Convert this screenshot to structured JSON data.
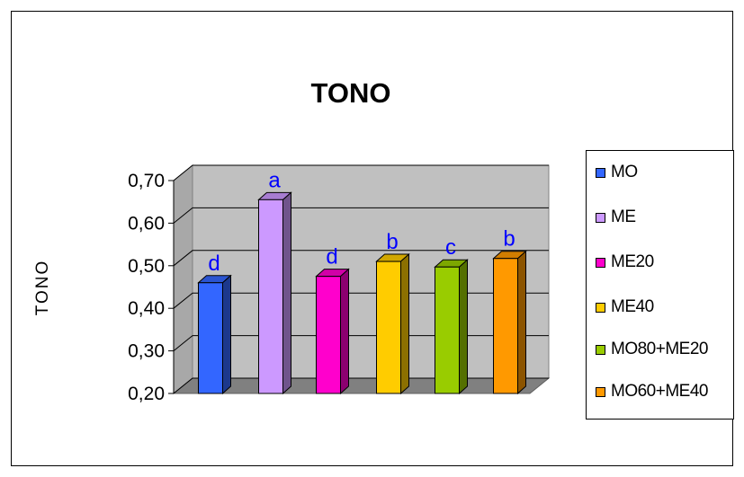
{
  "chart_data": {
    "type": "bar",
    "title": "TONO",
    "ylabel": "TONO",
    "xlabel": "",
    "ylim": [
      0.2,
      0.7
    ],
    "yticks": [
      "0,20",
      "0,30",
      "0,40",
      "0,50",
      "0,60",
      "0,70"
    ],
    "ytick_values": [
      0.2,
      0.3,
      0.4,
      0.5,
      0.6,
      0.7
    ],
    "grid": true,
    "legend_position": "right",
    "series": [
      {
        "name": "MO",
        "value": 0.46,
        "label": "d",
        "color": "#3366ff"
      },
      {
        "name": "ME",
        "value": 0.655,
        "label": "a",
        "color": "#cc99ff"
      },
      {
        "name": "ME20",
        "value": 0.475,
        "label": "d",
        "color": "#ff00cc"
      },
      {
        "name": "ME40",
        "value": 0.51,
        "label": "b",
        "color": "#ffcc00"
      },
      {
        "name": "MO80+ME20",
        "value": 0.497,
        "label": "c",
        "color": "#99cc00"
      },
      {
        "name": "MO60+ME40",
        "value": 0.517,
        "label": "b",
        "color": "#ff9900"
      }
    ]
  }
}
